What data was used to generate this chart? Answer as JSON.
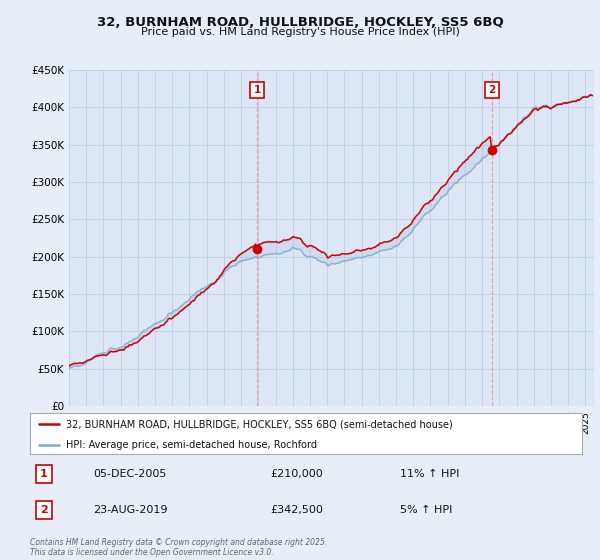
{
  "title_line1": "32, BURNHAM ROAD, HULLBRIDGE, HOCKLEY, SS5 6BQ",
  "title_line2": "Price paid vs. HM Land Registry's House Price Index (HPI)",
  "legend_red": "32, BURNHAM ROAD, HULLBRIDGE, HOCKLEY, SS5 6BQ (semi-detached house)",
  "legend_blue": "HPI: Average price, semi-detached house, Rochford",
  "annotation1_label": "1",
  "annotation1_date": "05-DEC-2005",
  "annotation1_price": "£210,000",
  "annotation1_hpi": "11% ↑ HPI",
  "annotation2_label": "2",
  "annotation2_date": "23-AUG-2019",
  "annotation2_price": "£342,500",
  "annotation2_hpi": "5% ↑ HPI",
  "footer": "Contains HM Land Registry data © Crown copyright and database right 2025.\nThis data is licensed under the Open Government Licence v3.0.",
  "ylim_min": 0,
  "ylim_max": 450000,
  "bg_color": "#e8eef8",
  "plot_bg": "#dce6f4",
  "red_color": "#cc0000",
  "blue_color": "#7aaace",
  "fill_color": "#c8d8ee",
  "grid_color": "#b8c8dc",
  "sale1_t": 2005.92,
  "sale2_t": 2019.58,
  "sale1_val": 210000,
  "sale2_val": 342500
}
